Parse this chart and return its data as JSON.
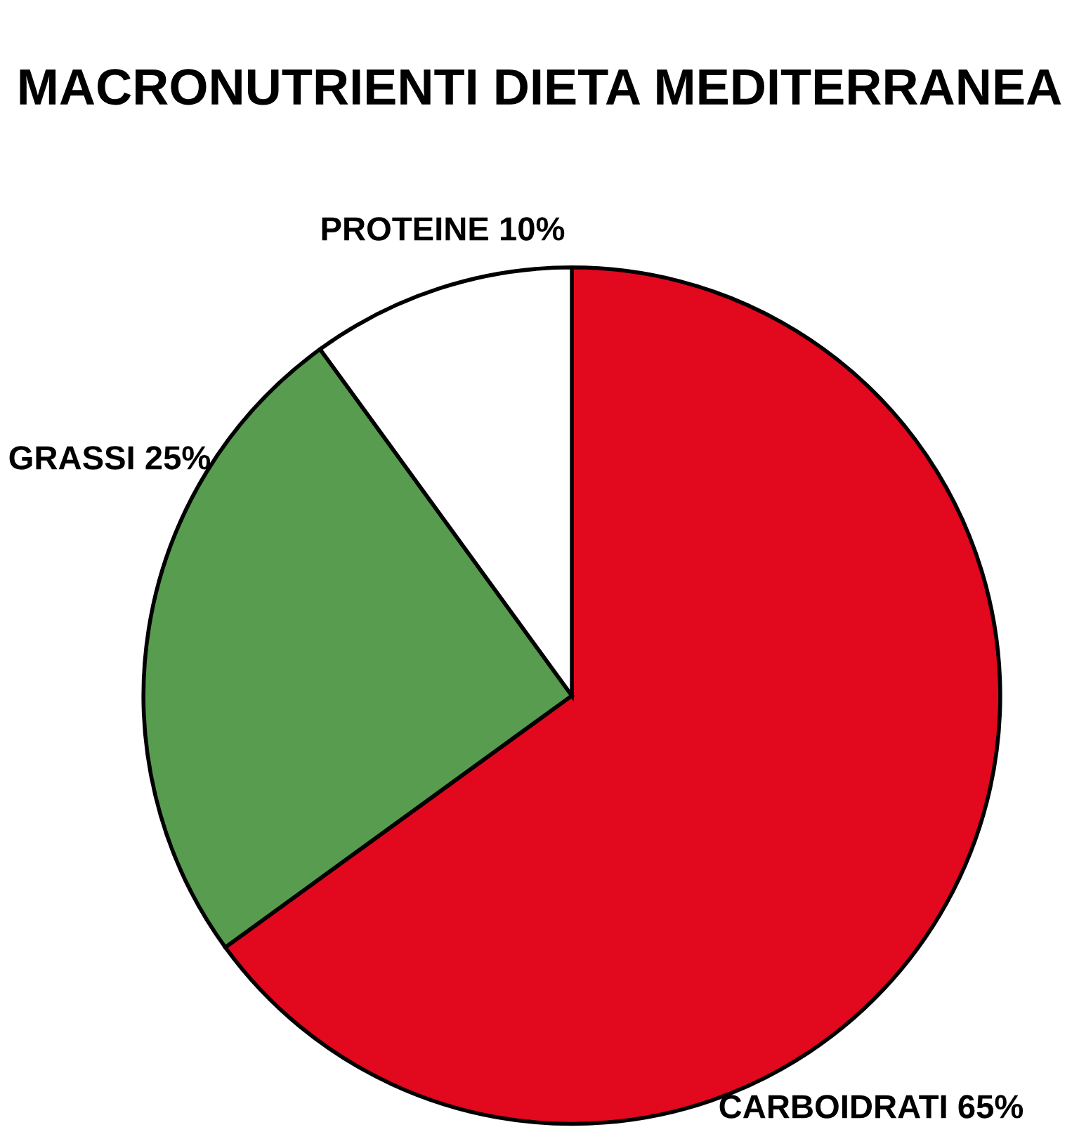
{
  "chart_data": {
    "type": "pie",
    "title": "MACRONUTRIENTI DIETA MEDITERRANEA",
    "categories": [
      "CARBOIDRATI 65%",
      "GRASSI 25%",
      "PROTEINE 10%"
    ],
    "values": [
      65,
      25,
      10
    ],
    "colors": [
      "#e2081e",
      "#579c4f",
      "#ffffff"
    ]
  }
}
